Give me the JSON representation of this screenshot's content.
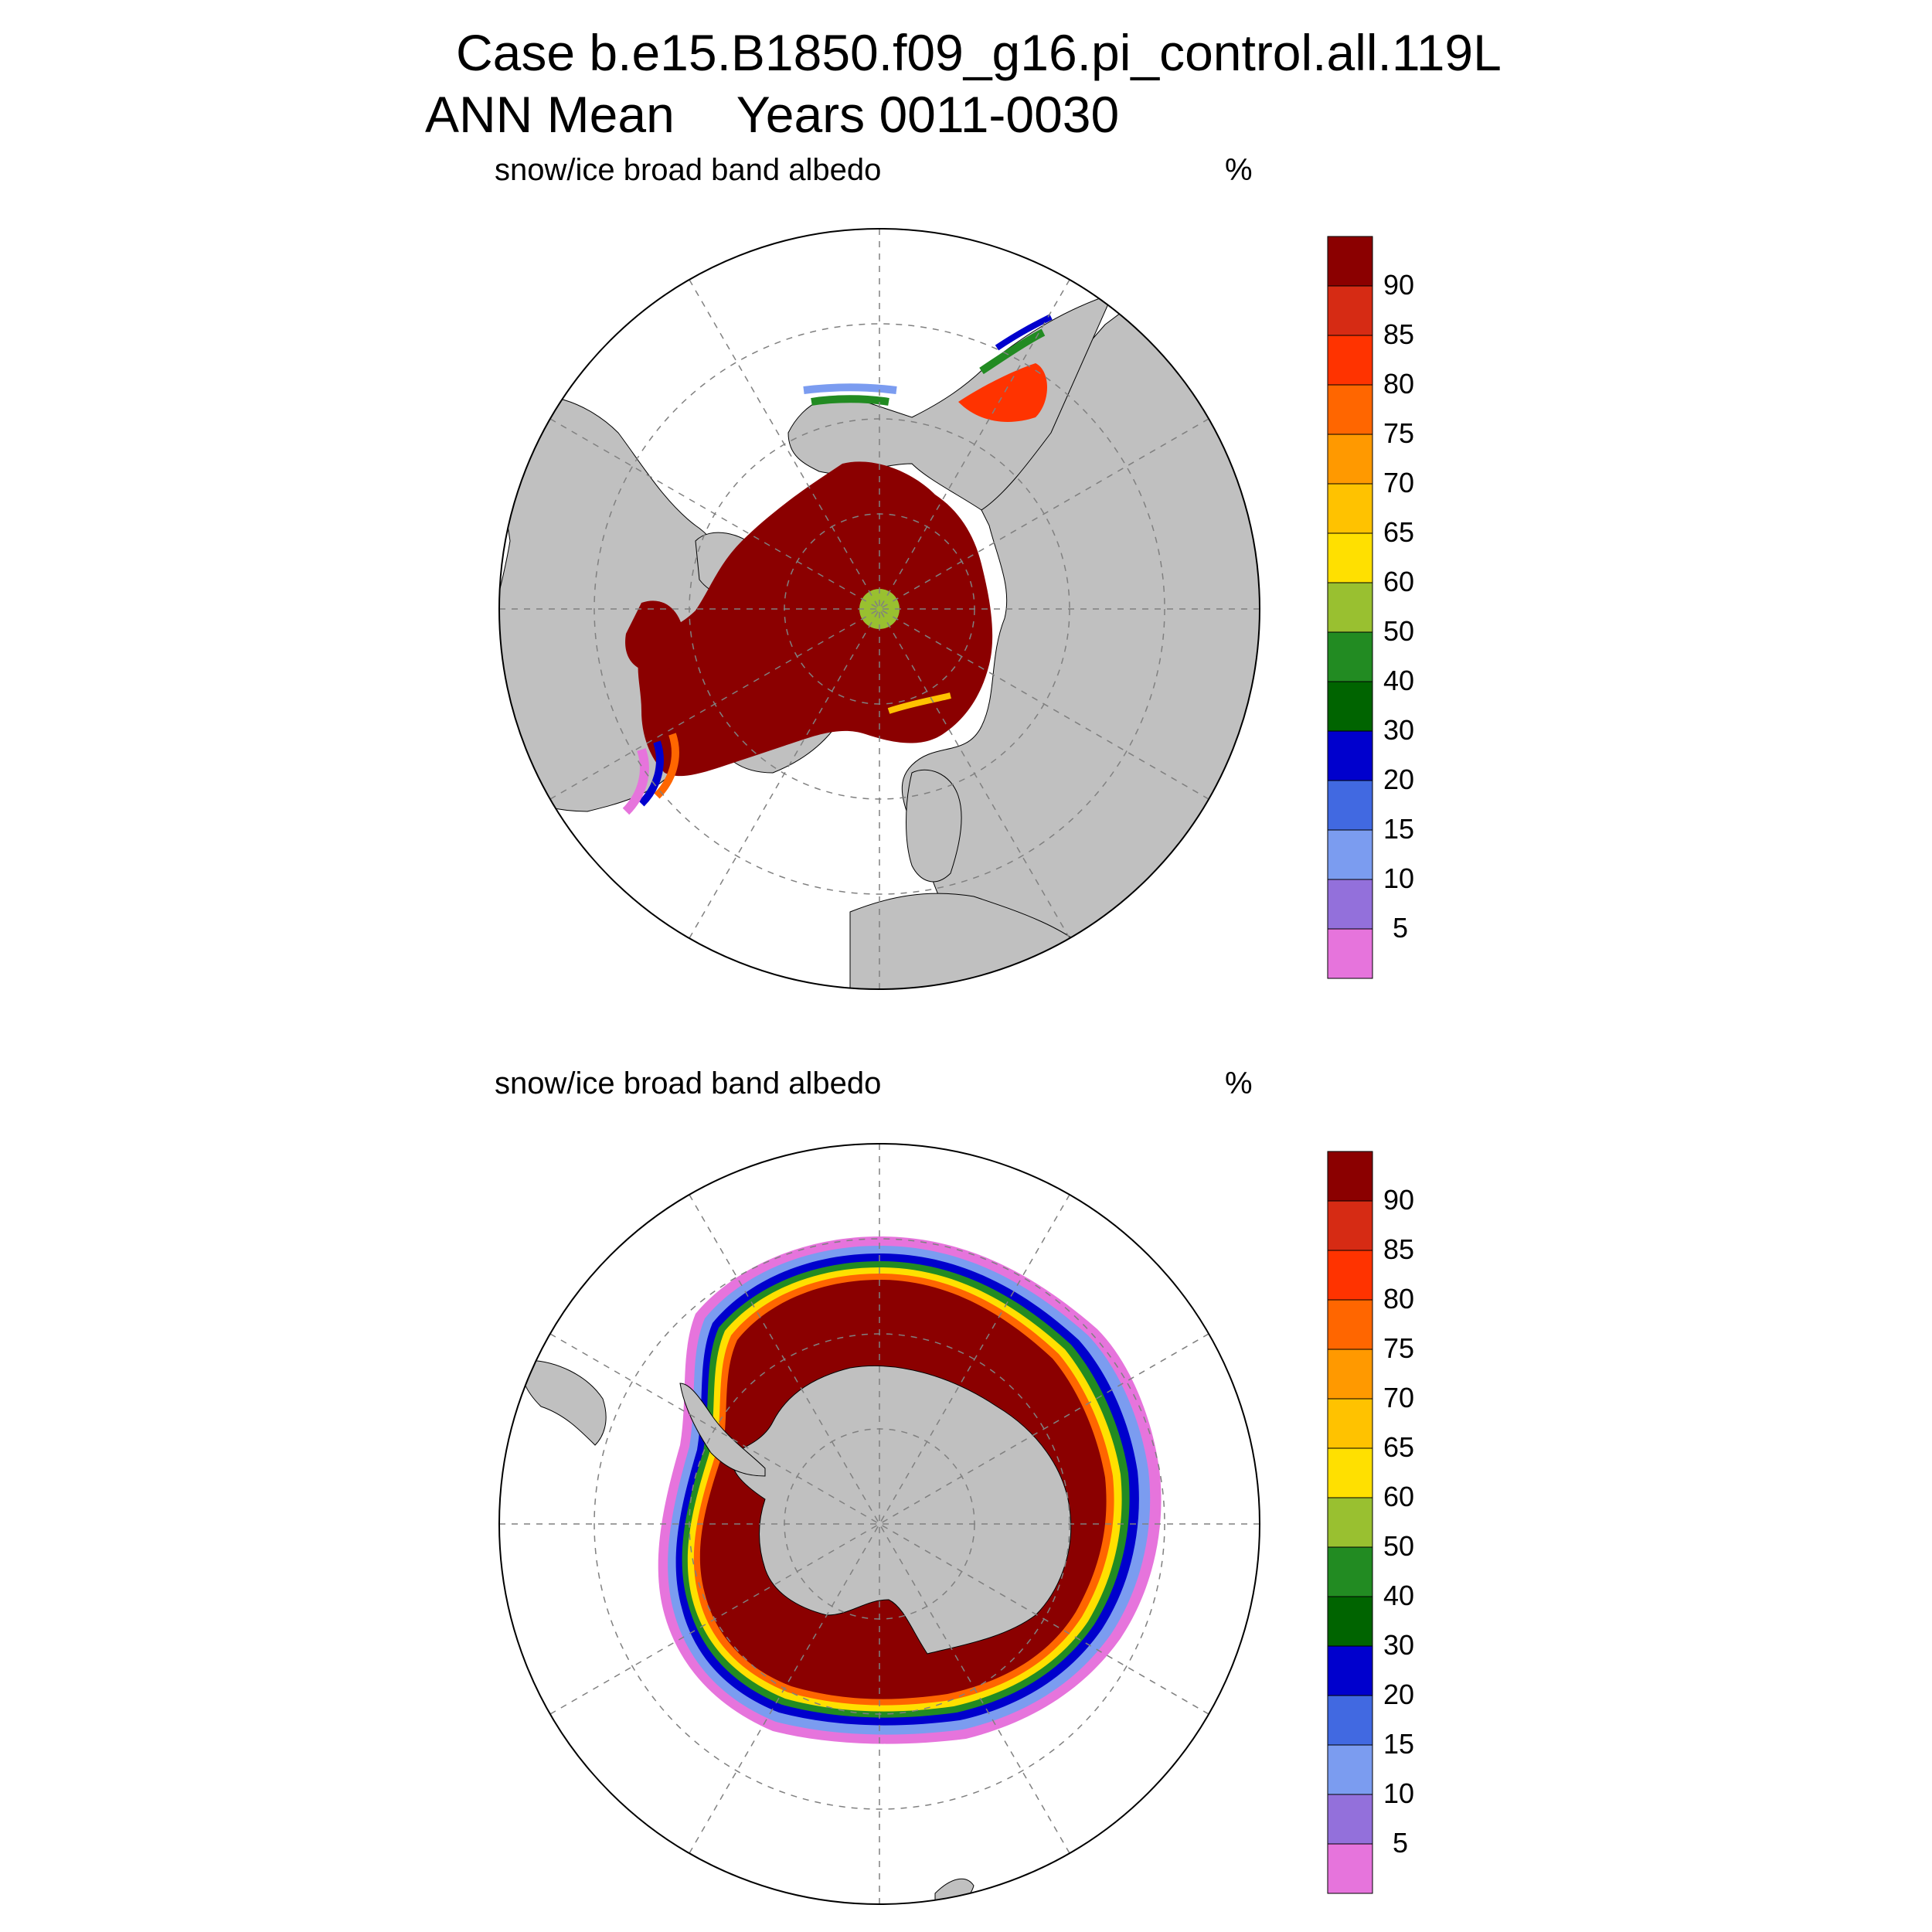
{
  "header": {
    "case_line": "Case b.e15.B1850.f09_g16.pi_control.all.119L",
    "season": "ANN Mean",
    "years": "Years 0011-0030"
  },
  "panels": [
    {
      "id": "north",
      "hemisphere": "Northern",
      "variable": "snow/ice broad band albedo",
      "units": "%"
    },
    {
      "id": "south",
      "hemisphere": "Southern",
      "variable": "snow/ice broad band albedo",
      "units": "%"
    }
  ],
  "colorbar": {
    "levels": [
      "90",
      "85",
      "80",
      "75",
      "70",
      "65",
      "60",
      "50",
      "40",
      "30",
      "20",
      "15",
      "10",
      "5"
    ],
    "colors": [
      "#8b0000",
      "#d62b14",
      "#ff3300",
      "#ff6600",
      "#ff9900",
      "#ffc200",
      "#ffe000",
      "#99c030",
      "#228b22",
      "#006400",
      "#0000cd",
      "#4169e1",
      "#7b9cf0",
      "#9370db",
      "#e674dc"
    ]
  },
  "map_colors": {
    "land": "#c0c0c0",
    "ocean": "#ffffff",
    "grid": "#808080"
  }
}
